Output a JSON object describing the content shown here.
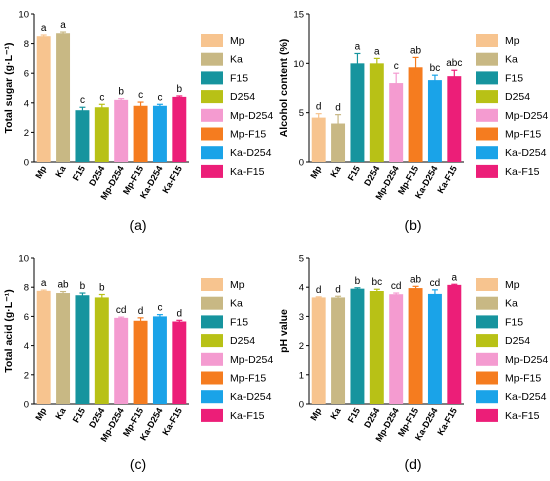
{
  "colors": {
    "Mp": "#f7c48f",
    "Ka": "#c8b884",
    "F15": "#16949e",
    "D254": "#b8c116",
    "Mp-D254": "#f49bd0",
    "Mp-F15": "#f57c1f",
    "Ka-D254": "#1aa3e8",
    "Ka-F15": "#ec1e78"
  },
  "legend_entries": [
    "Mp",
    "Ka",
    "F15",
    "D254",
    "Mp-D254",
    "Mp-F15",
    "Ka-D254",
    "Ka-F15"
  ],
  "chart_data": [
    {
      "type": "bar",
      "panel_label": "(a)",
      "ylabel": "Total sugar (g·L⁻¹)",
      "categories": [
        "Mp",
        "Ka",
        "F15",
        "D254",
        "Mp-D254",
        "Mp-F15",
        "Ka-D254",
        "Ka-F15"
      ],
      "values": [
        8.5,
        8.7,
        3.5,
        3.7,
        4.2,
        3.8,
        3.8,
        4.4
      ],
      "errors": [
        0.08,
        0.08,
        0.2,
        0.2,
        0.08,
        0.25,
        0.1,
        0.06
      ],
      "letters": [
        "a",
        "a",
        "c",
        "c",
        "b",
        "c",
        "c",
        "b"
      ],
      "ylim": [
        0,
        10
      ],
      "yticks": [
        0,
        2,
        4,
        6,
        8,
        10
      ],
      "legend": "right"
    },
    {
      "type": "bar",
      "panel_label": "(b)",
      "ylabel": "Alcohol content (%)",
      "categories": [
        "Mp",
        "Ka",
        "F15",
        "D254",
        "Mp-D254",
        "Mp-F15",
        "Ka-D254",
        "Ka-F15"
      ],
      "values": [
        4.5,
        3.9,
        10.0,
        10.0,
        8.0,
        9.6,
        8.3,
        8.7
      ],
      "errors": [
        0.4,
        0.9,
        1.0,
        0.5,
        1.0,
        1.0,
        0.5,
        0.6
      ],
      "letters": [
        "d",
        "d",
        "a",
        "a",
        "c",
        "ab",
        "bc",
        "abc"
      ],
      "ylim": [
        0,
        15
      ],
      "yticks": [
        0,
        5,
        10,
        15
      ],
      "legend": "right"
    },
    {
      "type": "bar",
      "panel_label": "(c)",
      "ylabel": "Total acid (g·L⁻¹)",
      "categories": [
        "Mp",
        "Ka",
        "F15",
        "D254",
        "Mp-D254",
        "Mp-F15",
        "Ka-D254",
        "Ka-F15"
      ],
      "values": [
        7.75,
        7.6,
        7.45,
        7.3,
        5.9,
        5.7,
        6.0,
        5.65
      ],
      "errors": [
        0.05,
        0.1,
        0.15,
        0.2,
        0.05,
        0.2,
        0.12,
        0.08
      ],
      "letters": [
        "a",
        "ab",
        "b",
        "b",
        "cd",
        "d",
        "c",
        "d"
      ],
      "ylim": [
        0,
        10
      ],
      "yticks": [
        0,
        2,
        4,
        6,
        8,
        10
      ],
      "legend": "right"
    },
    {
      "type": "bar",
      "panel_label": "(d)",
      "ylabel": "pH value",
      "categories": [
        "Mp",
        "Ka",
        "F15",
        "D254",
        "Mp-D254",
        "Mp-F15",
        "Ka-D254",
        "Ka-F15"
      ],
      "values": [
        3.65,
        3.65,
        3.95,
        3.87,
        3.76,
        3.97,
        3.77,
        4.08
      ],
      "errors": [
        0.02,
        0.04,
        0.03,
        0.06,
        0.04,
        0.06,
        0.14,
        0.02
      ],
      "letters": [
        "d",
        "d",
        "b",
        "bc",
        "cd",
        "ab",
        "cd",
        "a"
      ],
      "ylim": [
        0,
        5
      ],
      "yticks": [
        0,
        1,
        2,
        3,
        4,
        5
      ],
      "legend": "right"
    }
  ]
}
